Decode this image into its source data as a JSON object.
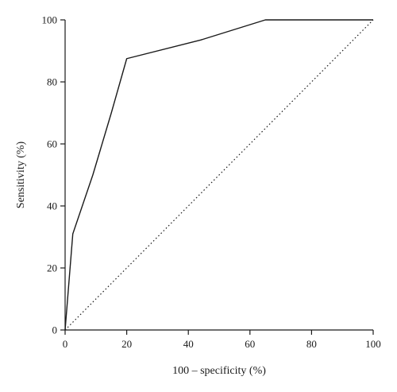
{
  "chart_data": {
    "type": "line",
    "title": "",
    "xlabel": "100 – specificity (%)",
    "ylabel": "Sensitivity (%)",
    "xlim": [
      0,
      100
    ],
    "ylim": [
      0,
      100
    ],
    "xticks": [
      0,
      20,
      40,
      60,
      80,
      100
    ],
    "yticks": [
      0,
      20,
      40,
      60,
      80,
      100
    ],
    "grid": false,
    "series": [
      {
        "style": "solid",
        "x": [
          0,
          2.5,
          9,
          15,
          20,
          44,
          65,
          100
        ],
        "y": [
          0,
          31,
          50,
          70,
          87.5,
          93.5,
          100,
          100
        ]
      },
      {
        "style": "dotted",
        "x": [
          0,
          100
        ],
        "y": [
          0,
          100
        ]
      }
    ]
  }
}
